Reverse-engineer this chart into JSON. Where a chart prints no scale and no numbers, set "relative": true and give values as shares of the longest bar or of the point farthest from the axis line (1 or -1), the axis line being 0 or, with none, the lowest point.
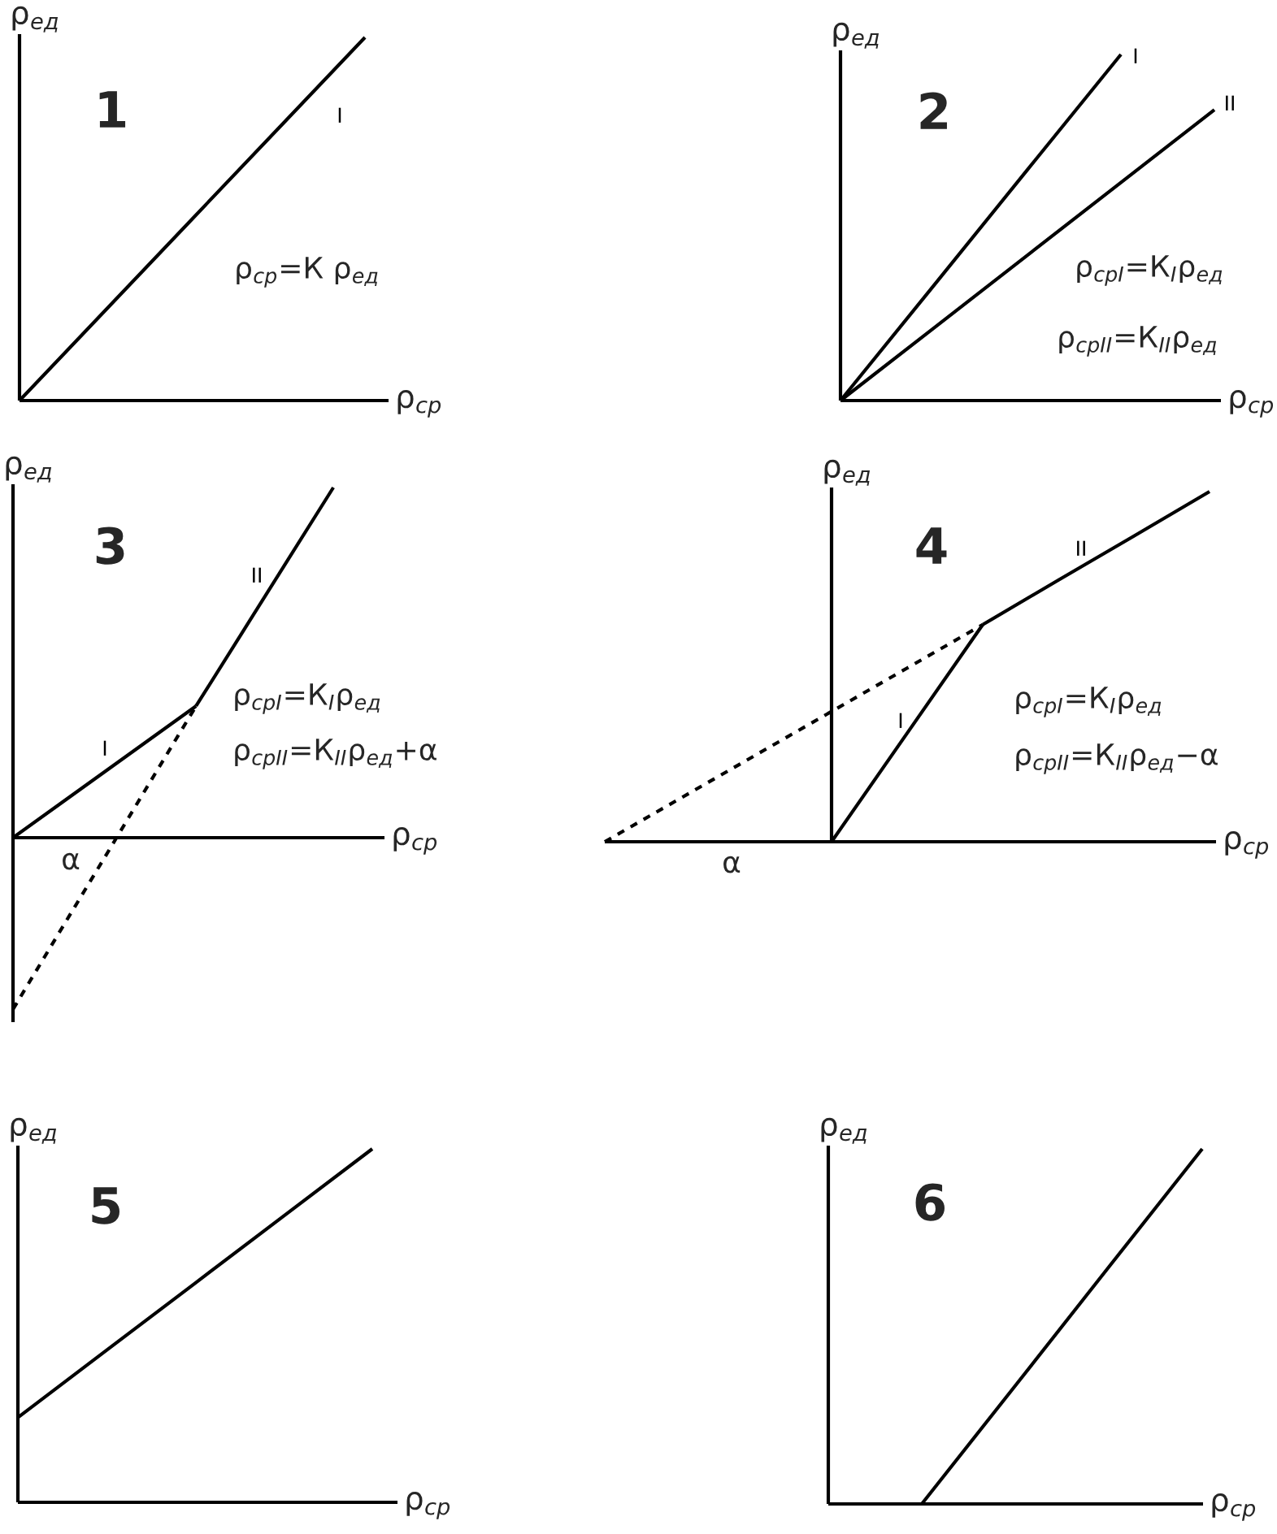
{
  "chart_data": [
    {
      "type": "line",
      "title": "1",
      "xlabel": "ρ$_{ср}$",
      "ylabel": "ρ$_{ед}$",
      "relative": true,
      "categories": [
        null,
        null,
        null,
        null,
        null
      ],
      "series": [
        {
          "name": "I",
          "color": "#000000",
          "values": [
            0,
            0.25,
            0.5,
            0.75,
            1
          ]
        }
      ],
      "annotations": [
        "ρ$_{ср}$=К ρ$_{ед}$"
      ]
    },
    {
      "type": "line",
      "title": "2",
      "xlabel": "ρ$_{ср}$",
      "ylabel": "ρ$_{ед}$",
      "relative": true,
      "categories": [
        null,
        null,
        null,
        null,
        null
      ],
      "series": [
        {
          "name": "I",
          "color": "#000000",
          "values": [
            0,
            0.333,
            0.667,
            1,
            null
          ]
        },
        {
          "name": "II",
          "color": "#000000",
          "values": [
            0,
            0.21,
            0.42,
            0.63,
            0.84
          ]
        }
      ],
      "annotations": [
        "ρ$_{срI}$=К$_{I}$ρ$_{ед}$",
        "ρ$_{срII}$=К$_{II}$ρ$_{ед}$"
      ]
    },
    {
      "type": "line",
      "title": "3",
      "xlabel": "ρ$_{ср}$",
      "ylabel": "ρ$_{ед}$",
      "relative": true,
      "categories": [
        null,
        null,
        null,
        null,
        null,
        null,
        null,
        null
      ],
      "series": [
        {
          "name": "I",
          "color": "#000000",
          "values": [
            0,
            0.094,
            0.188,
            0.282,
            0.376,
            null,
            null,
            null
          ]
        },
        {
          "name": "II",
          "color": "#000000",
          "values": [
            null,
            null,
            null,
            null,
            0.376,
            0.584,
            0.792,
            1
          ]
        },
        {
          "color": "#000000",
          "line_style": "dashed",
          "values": [
            -0.49,
            -0.273,
            -0.057,
            0.16,
            0.376,
            null,
            null,
            null
          ]
        }
      ],
      "annotations": [
        "ρ$_{срI}$=К$_{I}$ρ$_{ед}$",
        "ρ$_{срII}$=К$_{II}$ρ$_{ед}$+α",
        "α"
      ]
    },
    {
      "type": "line",
      "title": "4",
      "xlabel": "ρ$_{ср}$",
      "ylabel": "ρ$_{ед}$",
      "relative": true,
      "categories": [
        null,
        null,
        null,
        null,
        null,
        null,
        null,
        null,
        null
      ],
      "series": [
        {
          "name": "I",
          "color": "#000000",
          "values": [
            null,
            null,
            null,
            0,
            0.31,
            0.62,
            null,
            null,
            null
          ]
        },
        {
          "name": "II",
          "color": "#000000",
          "values": [
            null,
            null,
            null,
            null,
            null,
            0.62,
            0.747,
            0.873,
            1
          ]
        },
        {
          "color": "#000000",
          "line_style": "dashed",
          "values": [
            0,
            0.124,
            0.248,
            0.372,
            0.496,
            0.62,
            null,
            null,
            null
          ]
        }
      ],
      "annotations": [
        "ρ$_{срI}$=К$_{I}$ρ$_{ед}$",
        "ρ$_{срII}$=К$_{II}$ρ$_{ед}$−α",
        "α"
      ]
    },
    {
      "type": "line",
      "title": "5",
      "xlabel": "ρ$_{ср}$",
      "ylabel": "ρ$_{ед}$",
      "relative": true,
      "categories": [
        null,
        null,
        null,
        null,
        null
      ],
      "series": [
        {
          "color": "#000000",
          "values": [
            0.24,
            0.43,
            0.62,
            0.81,
            1
          ]
        }
      ]
    },
    {
      "type": "line",
      "title": "6",
      "xlabel": "ρ$_{ср}$",
      "ylabel": "ρ$_{ед}$",
      "relative": true,
      "categories": [
        null,
        null,
        null,
        null,
        null
      ],
      "series": [
        {
          "color": "#000000",
          "values": [
            null,
            0,
            0.333,
            0.667,
            1
          ]
        }
      ]
    }
  ]
}
